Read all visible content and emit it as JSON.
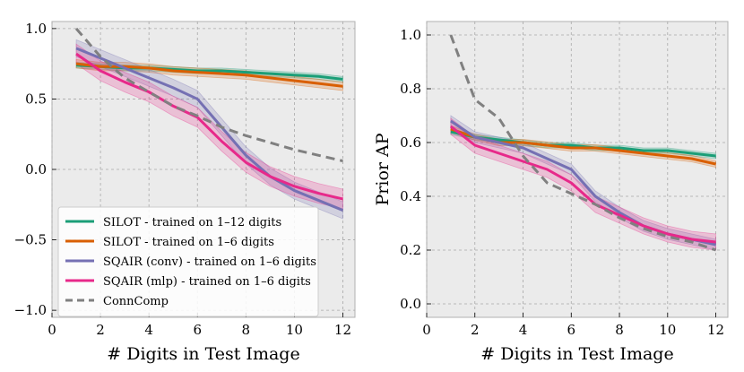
{
  "chart_data": [
    {
      "type": "line",
      "xlabel": "# Digits in Test Image",
      "ylabel": "",
      "xlim": [
        0,
        12.5
      ],
      "ylim": [
        -1.05,
        1.05
      ],
      "xticks": [
        0,
        2,
        4,
        6,
        8,
        10,
        12
      ],
      "yticks": [
        -1.0,
        -0.5,
        0.0,
        0.5,
        1.0
      ],
      "ytick_labels": [
        "−1.0",
        "−0.5",
        "0.0",
        "0.5",
        "1.0"
      ],
      "grid": true,
      "legend_position": "lower-left",
      "x": [
        1,
        2,
        3,
        4,
        5,
        6,
        7,
        8,
        9,
        10,
        11,
        12
      ],
      "series": [
        {
          "name": "SILOT - trained on 1–12 digits",
          "color": "#1b9e77",
          "style": "solid",
          "values": [
            0.74,
            0.73,
            0.72,
            0.72,
            0.71,
            0.7,
            0.7,
            0.69,
            0.68,
            0.67,
            0.66,
            0.64
          ],
          "band": 0.02
        },
        {
          "name": "SILOT - trained on 1–6 digits",
          "color": "#d95f02",
          "style": "solid",
          "values": [
            0.75,
            0.73,
            0.73,
            0.72,
            0.7,
            0.69,
            0.68,
            0.67,
            0.65,
            0.63,
            0.61,
            0.59
          ],
          "band": 0.03
        },
        {
          "name": "SQAIR (conv) - trained on 1–6 digits",
          "color": "#7570b3",
          "style": "solid",
          "values": [
            0.86,
            0.79,
            0.72,
            0.65,
            0.58,
            0.5,
            0.3,
            0.1,
            -0.05,
            -0.15,
            -0.22,
            -0.29
          ],
          "band": 0.06
        },
        {
          "name": "SQAIR (mlp) - trained on 1–6 digits",
          "color": "#e7298a",
          "style": "solid",
          "values": [
            0.82,
            0.7,
            0.62,
            0.55,
            0.45,
            0.37,
            0.2,
            0.05,
            -0.05,
            -0.12,
            -0.17,
            -0.21
          ],
          "band": 0.07
        },
        {
          "name": "ConnComp",
          "color": "#808080",
          "style": "dashed",
          "values": [
            1.0,
            0.8,
            0.65,
            0.55,
            0.45,
            0.38,
            0.3,
            0.24,
            0.19,
            0.14,
            0.1,
            0.06
          ],
          "band": 0
        }
      ]
    },
    {
      "type": "line",
      "xlabel": "# Digits in Test Image",
      "ylabel": "Prior AP",
      "xlim": [
        0,
        12.5
      ],
      "ylim": [
        -0.05,
        1.05
      ],
      "xticks": [
        0,
        2,
        4,
        6,
        8,
        10,
        12
      ],
      "yticks": [
        0.0,
        0.2,
        0.4,
        0.6,
        0.8,
        1.0
      ],
      "ytick_labels": [
        "0.0",
        "0.2",
        "0.4",
        "0.6",
        "0.8",
        "1.0"
      ],
      "grid": true,
      "x": [
        1,
        2,
        3,
        4,
        5,
        6,
        7,
        8,
        9,
        10,
        11,
        12
      ],
      "series": [
        {
          "color": "#1b9e77",
          "style": "solid",
          "values": [
            0.64,
            0.62,
            0.61,
            0.6,
            0.59,
            0.59,
            0.58,
            0.58,
            0.57,
            0.57,
            0.56,
            0.55
          ],
          "band": 0.01
        },
        {
          "color": "#d95f02",
          "style": "solid",
          "values": [
            0.65,
            0.62,
            0.6,
            0.6,
            0.59,
            0.58,
            0.58,
            0.57,
            0.56,
            0.55,
            0.54,
            0.52
          ],
          "band": 0.012
        },
        {
          "color": "#7570b3",
          "style": "solid",
          "values": [
            0.68,
            0.62,
            0.6,
            0.58,
            0.54,
            0.5,
            0.4,
            0.34,
            0.29,
            0.26,
            0.24,
            0.22
          ],
          "band": 0.02
        },
        {
          "color": "#e7298a",
          "style": "solid",
          "values": [
            0.66,
            0.59,
            0.56,
            0.53,
            0.5,
            0.45,
            0.37,
            0.33,
            0.29,
            0.26,
            0.24,
            0.23
          ],
          "band": 0.03
        },
        {
          "color": "#808080",
          "style": "dashed",
          "values": [
            1.0,
            0.76,
            0.69,
            0.55,
            0.45,
            0.41,
            0.37,
            0.32,
            0.28,
            0.25,
            0.23,
            0.2
          ],
          "band": 0
        }
      ]
    }
  ]
}
